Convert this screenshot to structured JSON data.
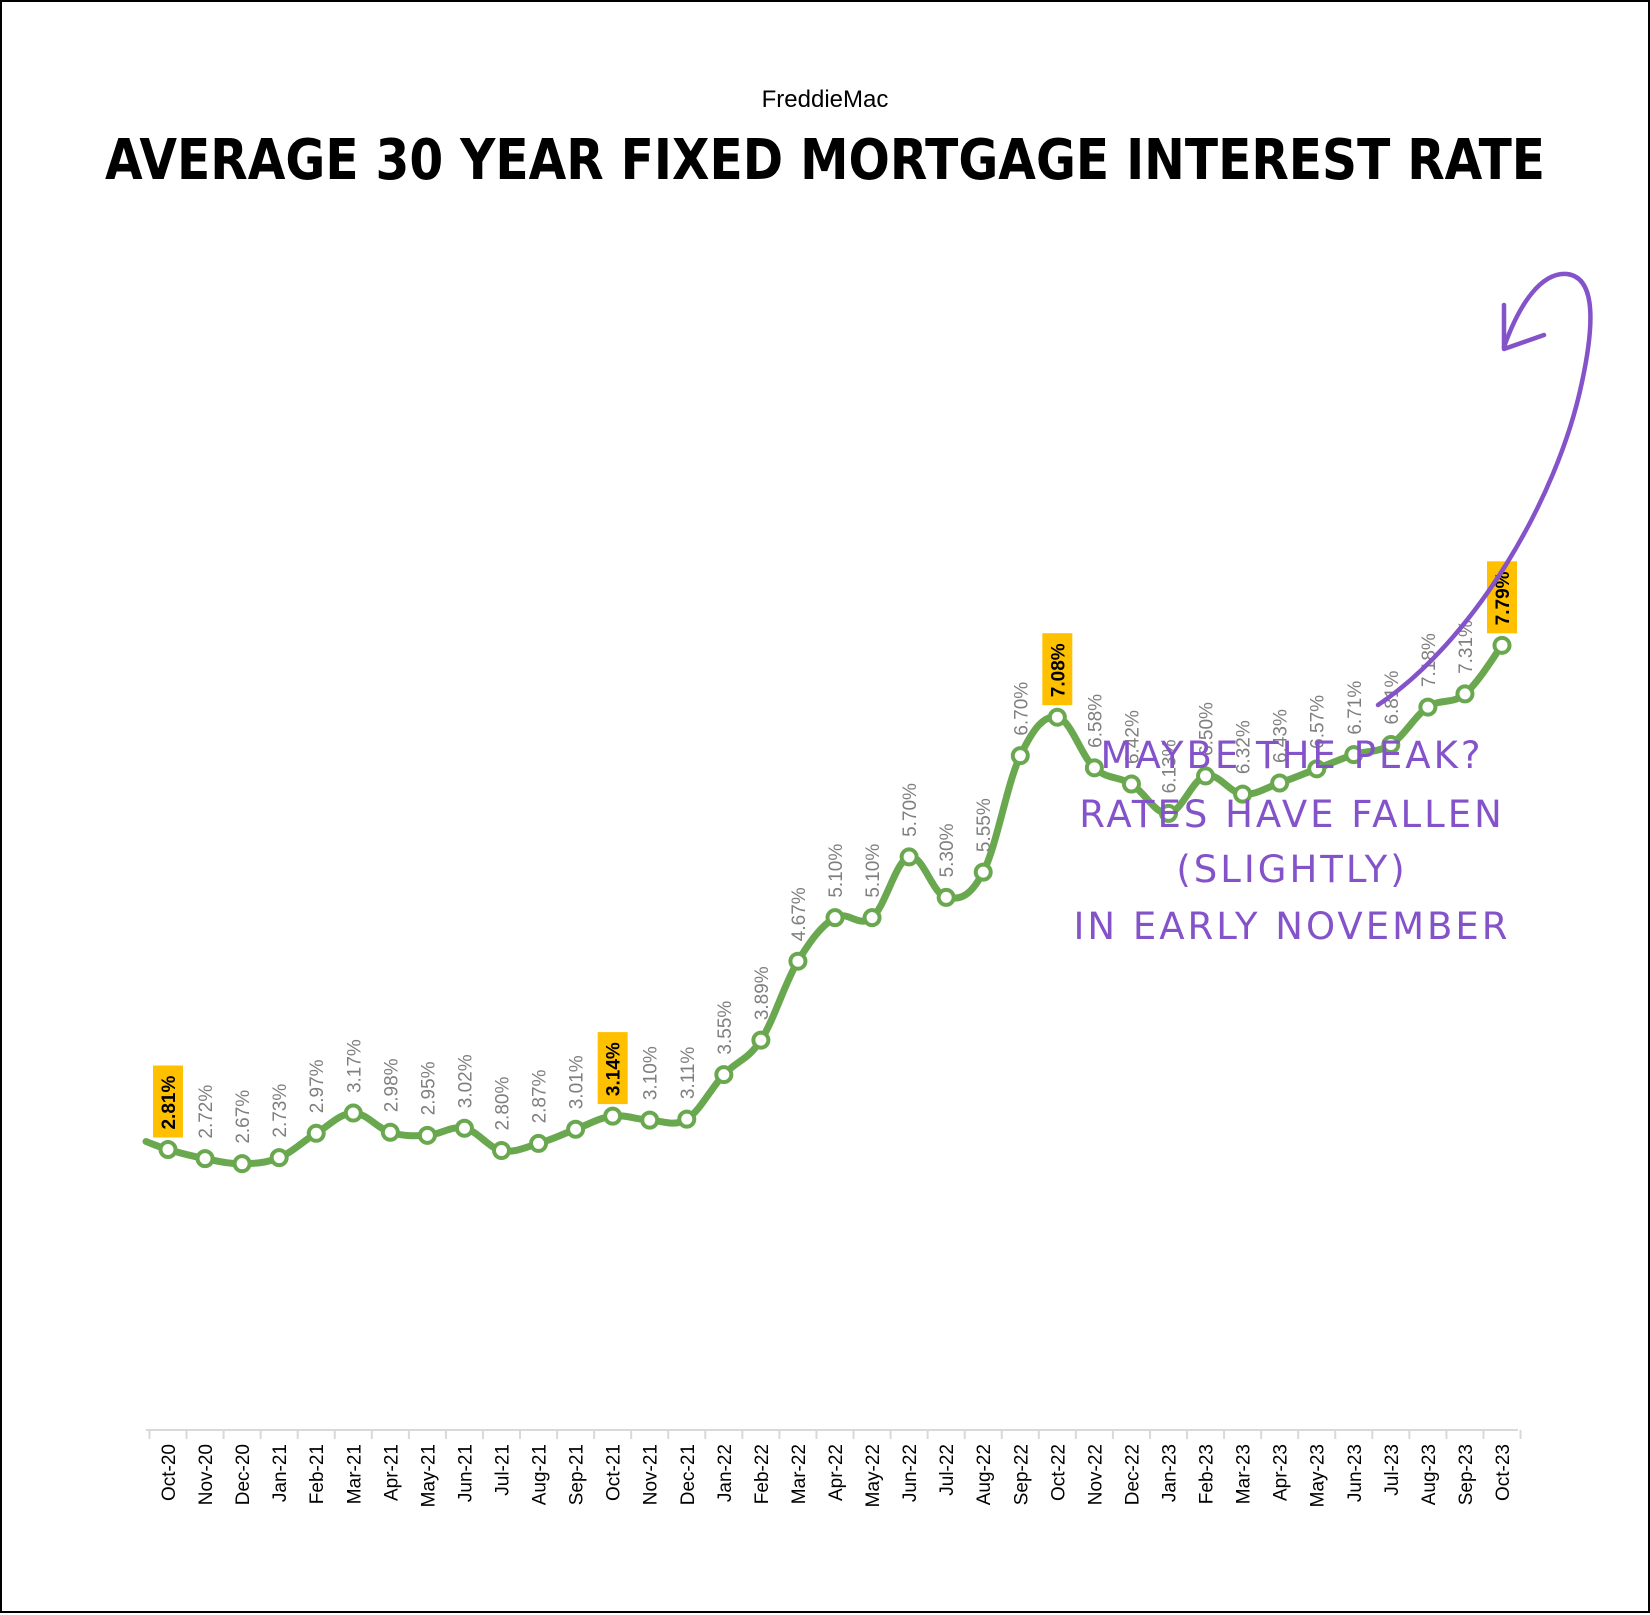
{
  "chart_data": {
    "type": "line",
    "subtitle": "FreddieMac",
    "title": "AVERAGE 30 YEAR FIXED MORTGAGE INTEREST RATE",
    "xlabel": "",
    "ylabel": "",
    "ylim": [
      0,
      9
    ],
    "grid": false,
    "legend": "none",
    "line_color": "#6aa84f",
    "highlight_color": "#ffc000",
    "annotation_color": "#8452c9",
    "categories": [
      "Oct-20",
      "Nov-20",
      "Dec-20",
      "Jan-21",
      "Feb-21",
      "Mar-21",
      "Apr-21",
      "May-21",
      "Jun-21",
      "Jul-21",
      "Aug-21",
      "Sep-21",
      "Oct-21",
      "Nov-21",
      "Dec-21",
      "Jan-22",
      "Feb-22",
      "Mar-22",
      "Apr-22",
      "May-22",
      "Jun-22",
      "Jul-22",
      "Aug-22",
      "Sep-22",
      "Oct-22",
      "Nov-22",
      "Dec-22",
      "Jan-23",
      "Feb-23",
      "Mar-23",
      "Apr-23",
      "May-23",
      "Jun-23",
      "Jul-23",
      "Aug-23",
      "Sep-23",
      "Oct-23"
    ],
    "values": [
      2.81,
      2.72,
      2.67,
      2.73,
      2.97,
      3.17,
      2.98,
      2.95,
      3.02,
      2.8,
      2.87,
      3.01,
      3.14,
      3.1,
      3.11,
      3.55,
      3.89,
      4.67,
      5.1,
      5.1,
      5.7,
      5.3,
      5.55,
      6.7,
      7.08,
      6.58,
      6.42,
      6.13,
      6.5,
      6.32,
      6.43,
      6.57,
      6.71,
      6.81,
      7.18,
      7.31,
      7.79
    ],
    "labels": [
      "2.81%",
      "2.72%",
      "2.67%",
      "2.73%",
      "2.97%",
      "3.17%",
      "2.98%",
      "2.95%",
      "3.02%",
      "2.80%",
      "2.87%",
      "3.01%",
      "3.14%",
      "3.10%",
      "3.11%",
      "3.55%",
      "3.89%",
      "4.67%",
      "5.10%",
      "5.10%",
      "5.70%",
      "5.30%",
      "5.55%",
      "6.70%",
      "7.08%",
      "6.58%",
      "6.42%",
      "6.13%",
      "6.50%",
      "6.32%",
      "6.43%",
      "6.57%",
      "6.71%",
      "6.81%",
      "7.18%",
      "7.31%",
      "7.79%"
    ],
    "highlighted": [
      "Oct-20",
      "Oct-21",
      "Oct-22",
      "Oct-23"
    ],
    "annotation": {
      "lines": [
        "MAYBE THE PEAK?",
        "RATES HAVE FALLEN",
        "(SLIGHTLY)",
        "IN EARLY NOVEMBER"
      ],
      "points_to": "Oct-23"
    }
  }
}
